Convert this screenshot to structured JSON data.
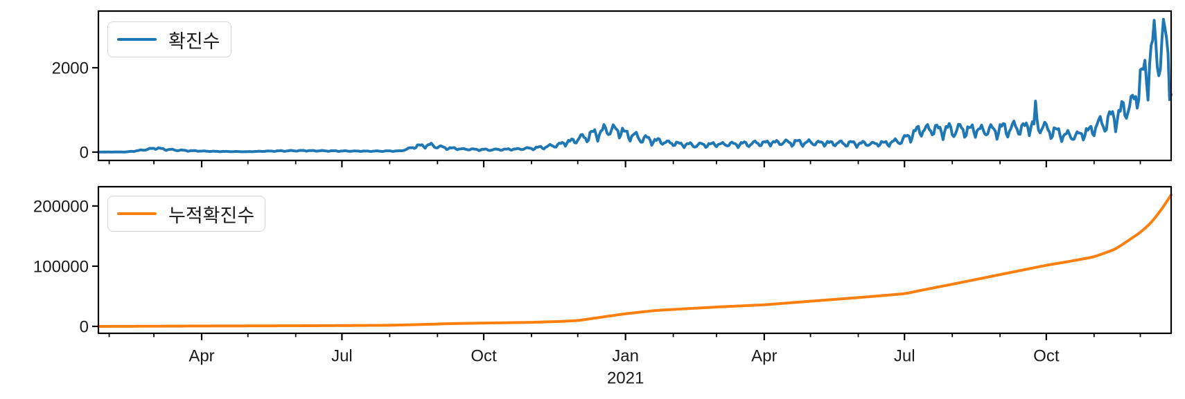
{
  "chart_data": [
    {
      "type": "line",
      "name": "daily_confirmed_cases",
      "legend_label": "확진수",
      "color": "#1f77b4",
      "ylim": [
        -197,
        3344
      ],
      "yticks": [
        {
          "v": 0,
          "label": "0"
        },
        {
          "v": 2000,
          "label": "2000"
        }
      ],
      "weekly_pattern": [
        -0.1,
        -0.32,
        -0.15,
        0.1,
        0.16,
        0.2,
        0.12
      ],
      "noise": [
        {
          "amp": 0.09,
          "freq": 2.13
        },
        {
          "amp": 0.05,
          "freq": 0.71
        }
      ],
      "clamp_max": 3150,
      "anchors": [
        [
          "2020-01-25",
          2
        ],
        [
          "2020-02-12",
          4
        ],
        [
          "2020-02-21",
          40
        ],
        [
          "2020-03-02",
          95
        ],
        [
          "2020-03-10",
          60
        ],
        [
          "2020-03-22",
          35
        ],
        [
          "2020-04-08",
          18
        ],
        [
          "2020-04-30",
          10
        ],
        [
          "2020-05-12",
          22
        ],
        [
          "2020-06-05",
          35
        ],
        [
          "2020-06-25",
          28
        ],
        [
          "2020-07-20",
          22
        ],
        [
          "2020-08-08",
          28
        ],
        [
          "2020-08-14",
          90
        ],
        [
          "2020-08-20",
          150
        ],
        [
          "2020-08-28",
          160
        ],
        [
          "2020-09-05",
          105
        ],
        [
          "2020-09-18",
          70
        ],
        [
          "2020-10-05",
          55
        ],
        [
          "2020-10-22",
          70
        ],
        [
          "2020-11-05",
          100
        ],
        [
          "2020-11-17",
          160
        ],
        [
          "2020-11-27",
          260
        ],
        [
          "2020-12-05",
          350
        ],
        [
          "2020-12-12",
          430
        ],
        [
          "2020-12-18",
          500
        ],
        [
          "2020-12-24",
          540
        ],
        [
          "2020-12-29",
          480
        ],
        [
          "2021-01-05",
          390
        ],
        [
          "2021-01-12",
          320
        ],
        [
          "2021-01-22",
          260
        ],
        [
          "2021-02-02",
          200
        ],
        [
          "2021-02-14",
          165
        ],
        [
          "2021-03-01",
          185
        ],
        [
          "2021-03-18",
          190
        ],
        [
          "2021-04-06",
          225
        ],
        [
          "2021-04-22",
          230
        ],
        [
          "2021-05-10",
          215
        ],
        [
          "2021-05-28",
          205
        ],
        [
          "2021-06-12",
          195
        ],
        [
          "2021-06-24",
          230
        ],
        [
          "2021-07-02",
          320
        ],
        [
          "2021-07-08",
          480
        ],
        [
          "2021-07-15",
          540
        ],
        [
          "2021-07-28",
          520
        ],
        [
          "2021-08-10",
          530
        ],
        [
          "2021-08-25",
          510
        ],
        [
          "2021-09-07",
          560
        ],
        [
          "2021-09-17",
          580
        ],
        [
          "2021-09-23",
          640
        ],
        [
          "2021-09-24",
          1000
        ],
        [
          "2021-09-25",
          700
        ],
        [
          "2021-09-27",
          600
        ],
        [
          "2021-10-06",
          480
        ],
        [
          "2021-10-17",
          370
        ],
        [
          "2021-10-26",
          440
        ],
        [
          "2021-11-03",
          620
        ],
        [
          "2021-11-12",
          780
        ],
        [
          "2021-11-19",
          950
        ],
        [
          "2021-11-26",
          1150
        ],
        [
          "2021-12-03",
          1800
        ],
        [
          "2021-12-08",
          2250
        ],
        [
          "2021-12-12",
          2500
        ],
        [
          "2021-12-15",
          2550
        ],
        [
          "2021-12-18",
          2400
        ],
        [
          "2021-12-19",
          2300
        ],
        [
          "2021-12-21",
          1750
        ]
      ]
    },
    {
      "type": "line",
      "name": "cumulative_confirmed_cases",
      "legend_label": "누적확진수",
      "color": "#ff7f0e",
      "ylim": [
        -11500,
        232000
      ],
      "yticks": [
        {
          "v": 0,
          "label": "0"
        },
        {
          "v": 100000,
          "label": "100000"
        },
        {
          "v": 200000,
          "label": "200000"
        }
      ],
      "smooth_window": 5,
      "anchors": [
        [
          "2020-01-25",
          0
        ],
        [
          "2020-03-01",
          300
        ],
        [
          "2020-04-01",
          600
        ],
        [
          "2020-05-01",
          780
        ],
        [
          "2020-06-01",
          1020
        ],
        [
          "2020-07-01",
          1400
        ],
        [
          "2020-08-01",
          1850
        ],
        [
          "2020-08-20",
          3000
        ],
        [
          "2020-09-10",
          4600
        ],
        [
          "2020-10-01",
          5500
        ],
        [
          "2020-11-01",
          6700
        ],
        [
          "2020-11-20",
          8300
        ],
        [
          "2020-12-01",
          9600
        ],
        [
          "2020-12-15",
          14800
        ],
        [
          "2021-01-01",
          21000
        ],
        [
          "2021-01-20",
          26300
        ],
        [
          "2021-02-01",
          28200
        ],
        [
          "2021-03-01",
          32200
        ],
        [
          "2021-04-01",
          35800
        ],
        [
          "2021-05-01",
          41800
        ],
        [
          "2021-06-01",
          47800
        ],
        [
          "2021-07-01",
          54200
        ],
        [
          "2021-07-15",
          61500
        ],
        [
          "2021-08-01",
          70000
        ],
        [
          "2021-09-01",
          86000
        ],
        [
          "2021-10-01",
          101500
        ],
        [
          "2021-10-15",
          107500
        ],
        [
          "2021-11-01",
          115500
        ],
        [
          "2021-11-15",
          128500
        ],
        [
          "2021-12-01",
          156000
        ],
        [
          "2021-12-08",
          172000
        ],
        [
          "2021-12-15",
          195000
        ],
        [
          "2021-12-21",
          218500
        ]
      ]
    }
  ],
  "x_axis": {
    "start_date": "2020-01-25",
    "end_date": "2021-12-21",
    "major_ticks": [
      {
        "date": "2020-04-01",
        "label": "Apr"
      },
      {
        "date": "2020-07-01",
        "label": "Jul"
      },
      {
        "date": "2020-10-01",
        "label": "Oct"
      },
      {
        "date": "2021-01-01",
        "label": "Jan"
      },
      {
        "date": "2021-04-01",
        "label": "Apr"
      },
      {
        "date": "2021-07-01",
        "label": "Jul"
      },
      {
        "date": "2021-10-01",
        "label": "Oct"
      }
    ],
    "minor_ticks": [
      "2020-02-01",
      "2020-03-01",
      "2020-05-01",
      "2020-06-01",
      "2020-08-01",
      "2020-09-01",
      "2020-11-01",
      "2020-12-01",
      "2021-02-01",
      "2021-03-01",
      "2021-05-01",
      "2021-06-01",
      "2021-08-01",
      "2021-09-01",
      "2021-11-01",
      "2021-12-01"
    ],
    "year_annotation": {
      "date": "2021-01-01",
      "label": "2021"
    }
  },
  "style": {
    "axis_color": "#000000",
    "text_color": "#1a1a1a",
    "background": "#ffffff"
  }
}
